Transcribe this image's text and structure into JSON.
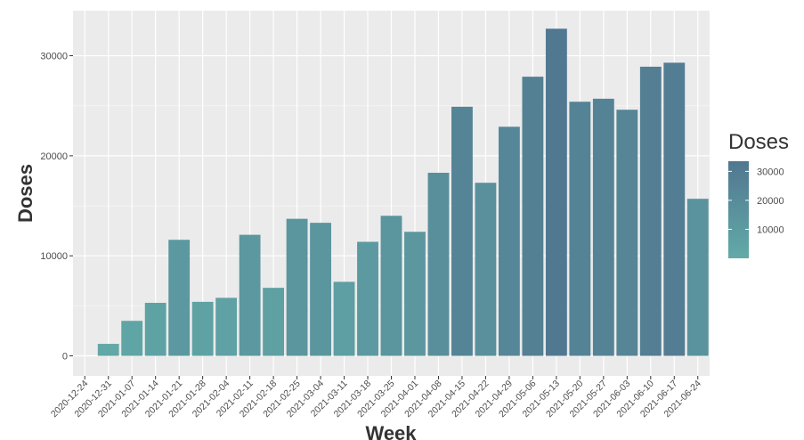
{
  "chart_data": {
    "type": "bar",
    "xlabel": "Week",
    "ylabel": "Doses",
    "ylim": [
      -2000,
      34500
    ],
    "yticks": [
      0,
      10000,
      20000,
      30000
    ],
    "grid": true,
    "categories": [
      "2020-12-24",
      "2020-12-31",
      "2021-01-07",
      "2021-01-14",
      "2021-01-21",
      "2021-01-28",
      "2021-02-04",
      "2021-02-11",
      "2021-02-18",
      "2021-02-25",
      "2021-03-04",
      "2021-03-11",
      "2021-03-18",
      "2021-03-25",
      "2021-04-01",
      "2021-04-08",
      "2021-04-15",
      "2021-04-22",
      "2021-04-29",
      "2021-05-06",
      "2021-05-13",
      "2021-05-20",
      "2021-05-27",
      "2021-06-03",
      "2021-06-10",
      "2021-06-17",
      "2021-06-24"
    ],
    "values": [
      0,
      1200,
      3500,
      5300,
      11600,
      5400,
      5800,
      12100,
      6800,
      13700,
      13300,
      7400,
      11400,
      14000,
      12400,
      18300,
      24900,
      17300,
      22900,
      27900,
      32700,
      25400,
      25700,
      24600,
      28900,
      29300,
      15700
    ],
    "legend": {
      "title": "Doses",
      "placement": "right",
      "ticks": [
        10000,
        20000,
        30000
      ],
      "range": [
        0,
        33500
      ],
      "color_low": "#62aaa8",
      "color_high": "#517790"
    }
  }
}
